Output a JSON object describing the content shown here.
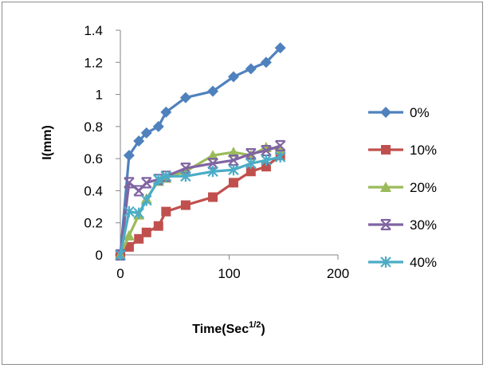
{
  "chart_data": {
    "type": "line",
    "title": "",
    "xlabel": "Time(Sec",
    "xlabel_sup": "1/2",
    "xlabel_end": ")",
    "ylabel": "I(mm)",
    "xlim": [
      0,
      200
    ],
    "ylim": [
      0,
      1.4
    ],
    "xticks": [
      "0",
      "100",
      "200"
    ],
    "xtick_values": [
      0,
      100,
      200
    ],
    "yticks": [
      "0",
      "0.2",
      "0.4",
      "0.6",
      "0.8",
      "1",
      "1.2",
      "1.4"
    ],
    "ytick_values": [
      0,
      0.2,
      0.4,
      0.6,
      0.8,
      1,
      1.2,
      1.4
    ],
    "grid": false,
    "legend_position": "right",
    "series": [
      {
        "name": "0%",
        "color": "#4f81bd",
        "marker": "diamond",
        "points": [
          [
            0,
            0
          ],
          [
            8,
            0.62
          ],
          [
            17,
            0.71
          ],
          [
            24,
            0.76
          ],
          [
            35,
            0.8
          ],
          [
            42,
            0.89
          ],
          [
            60,
            0.98
          ],
          [
            85,
            1.02
          ],
          [
            104,
            1.11
          ],
          [
            120,
            1.16
          ],
          [
            134,
            1.2
          ],
          [
            147,
            1.29
          ]
        ]
      },
      {
        "name": "10%",
        "color": "#c0504d",
        "marker": "square",
        "points": [
          [
            0,
            0
          ],
          [
            8,
            0.05
          ],
          [
            17,
            0.1
          ],
          [
            24,
            0.14
          ],
          [
            35,
            0.18
          ],
          [
            42,
            0.27
          ],
          [
            60,
            0.31
          ],
          [
            85,
            0.36
          ],
          [
            104,
            0.45
          ],
          [
            120,
            0.52
          ],
          [
            134,
            0.55
          ],
          [
            147,
            0.62
          ]
        ]
      },
      {
        "name": "20%",
        "color": "#9bbb59",
        "marker": "triangle",
        "points": [
          [
            0,
            0
          ],
          [
            8,
            0.12
          ],
          [
            17,
            0.25
          ],
          [
            24,
            0.35
          ],
          [
            35,
            0.46
          ],
          [
            42,
            0.48
          ],
          [
            60,
            0.52
          ],
          [
            85,
            0.62
          ],
          [
            104,
            0.64
          ],
          [
            120,
            0.62
          ],
          [
            134,
            0.67
          ],
          [
            147,
            0.66
          ]
        ]
      },
      {
        "name": "30%",
        "color": "#8064a2",
        "marker": "x-star",
        "points": [
          [
            0,
            0
          ],
          [
            8,
            0.45
          ],
          [
            17,
            0.4
          ],
          [
            24,
            0.45
          ],
          [
            35,
            0.47
          ],
          [
            42,
            0.49
          ],
          [
            60,
            0.54
          ],
          [
            85,
            0.57
          ],
          [
            104,
            0.59
          ],
          [
            120,
            0.63
          ],
          [
            134,
            0.65
          ],
          [
            147,
            0.68
          ]
        ]
      },
      {
        "name": "40%",
        "color": "#4bacc6",
        "marker": "asterisk",
        "points": [
          [
            0,
            0
          ],
          [
            8,
            0.27
          ],
          [
            17,
            0.26
          ],
          [
            24,
            0.34
          ],
          [
            35,
            0.47
          ],
          [
            42,
            0.49
          ],
          [
            60,
            0.49
          ],
          [
            85,
            0.52
          ],
          [
            104,
            0.53
          ],
          [
            120,
            0.57
          ],
          [
            134,
            0.59
          ],
          [
            147,
            0.61
          ]
        ]
      }
    ]
  }
}
